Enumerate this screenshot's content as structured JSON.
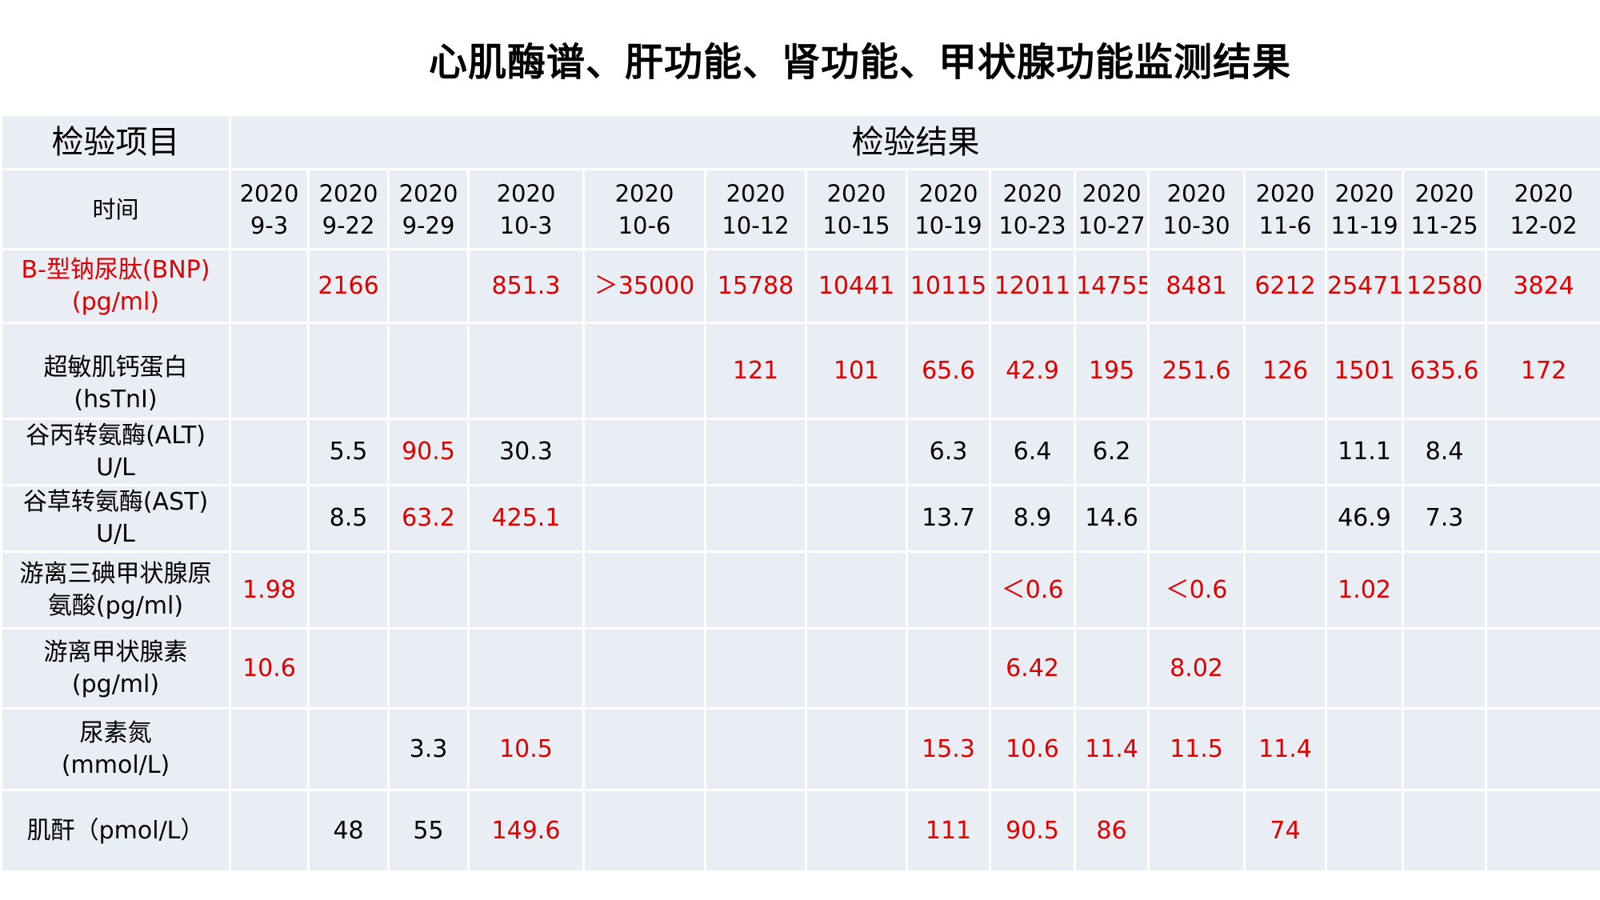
{
  "title": "心肌酶谱、肝功能、肾功能、甲状腺功能监测结果",
  "header": {
    "item_label": "检验项目",
    "result_label": "检验结果",
    "time_label": "时间"
  },
  "dates": [
    {
      "year": "2020",
      "md": "9-3"
    },
    {
      "year": "2020",
      "md": "9-22"
    },
    {
      "year": "2020",
      "md": "9-29"
    },
    {
      "year": "2020",
      "md": "10-3"
    },
    {
      "year": "2020",
      "md": "10-6"
    },
    {
      "year": "2020",
      "md": "10-12"
    },
    {
      "year": "2020",
      "md": "10-15"
    },
    {
      "year": "2020",
      "md": "10-19"
    },
    {
      "year": "2020",
      "md": "10-23"
    },
    {
      "year": "2020",
      "md": "10-27"
    },
    {
      "year": "2020",
      "md": "10-30"
    },
    {
      "year": "2020",
      "md": "11-6"
    },
    {
      "year": "2020",
      "md": "11-19"
    },
    {
      "year": "2020",
      "md": "11-25"
    },
    {
      "year": "2020",
      "md": "12-02"
    }
  ],
  "rows": [
    {
      "label1": "B-型钠尿肽(BNP)",
      "label2": "(pg/ml)",
      "label_color": "#e00000",
      "cells": [
        {
          "v": "",
          "red": false
        },
        {
          "v": "2166",
          "red": true
        },
        {
          "v": "",
          "red": false
        },
        {
          "v": "851.3",
          "red": true
        },
        {
          "v": "＞35000",
          "red": true
        },
        {
          "v": "15788",
          "red": true
        },
        {
          "v": "10441",
          "red": true
        },
        {
          "v": "10115",
          "red": true
        },
        {
          "v": "12011",
          "red": true
        },
        {
          "v": "14755",
          "red": true
        },
        {
          "v": "8481",
          "red": true
        },
        {
          "v": "6212",
          "red": true
        },
        {
          "v": "25471",
          "red": true
        },
        {
          "v": "12580",
          "red": true
        },
        {
          "v": "3824",
          "red": true
        }
      ]
    },
    {
      "label1": "超敏肌钙蛋白",
      "label2": "(hsTnI)",
      "label_color": "#000000",
      "cells": [
        {
          "v": "",
          "red": false
        },
        {
          "v": "",
          "red": false
        },
        {
          "v": "",
          "red": false
        },
        {
          "v": "",
          "red": false
        },
        {
          "v": "",
          "red": false
        },
        {
          "v": "121",
          "red": true
        },
        {
          "v": "101",
          "red": true
        },
        {
          "v": "65.6",
          "red": true
        },
        {
          "v": "42.9",
          "red": true
        },
        {
          "v": "195",
          "red": true
        },
        {
          "v": "251.6",
          "red": true
        },
        {
          "v": "126",
          "red": true
        },
        {
          "v": "1501",
          "red": true
        },
        {
          "v": "635.6",
          "red": true
        },
        {
          "v": "172",
          "red": true
        }
      ]
    },
    {
      "label1": "谷丙转氨酶(ALT)",
      "label2": "U/L",
      "label_color": "#000000",
      "cells": [
        {
          "v": "",
          "red": false
        },
        {
          "v": "5.5",
          "red": false
        },
        {
          "v": "90.5",
          "red": true
        },
        {
          "v": "30.3",
          "red": false
        },
        {
          "v": "",
          "red": false
        },
        {
          "v": "",
          "red": false
        },
        {
          "v": "",
          "red": false
        },
        {
          "v": "6.3",
          "red": false
        },
        {
          "v": "6.4",
          "red": false
        },
        {
          "v": "6.2",
          "red": false
        },
        {
          "v": "",
          "red": false
        },
        {
          "v": "",
          "red": false
        },
        {
          "v": "11.1",
          "red": false
        },
        {
          "v": "8.4",
          "red": false
        },
        {
          "v": "",
          "red": false
        }
      ]
    },
    {
      "label1": "谷草转氨酶(AST)",
      "label2": "U/L",
      "label_color": "#000000",
      "cells": [
        {
          "v": "",
          "red": false
        },
        {
          "v": "8.5",
          "red": false
        },
        {
          "v": "63.2",
          "red": true
        },
        {
          "v": "425.1",
          "red": true
        },
        {
          "v": "",
          "red": false
        },
        {
          "v": "",
          "red": false
        },
        {
          "v": "",
          "red": false
        },
        {
          "v": "13.7",
          "red": false
        },
        {
          "v": "8.9",
          "red": false
        },
        {
          "v": "14.6",
          "red": false
        },
        {
          "v": "",
          "red": false
        },
        {
          "v": "",
          "red": false
        },
        {
          "v": "46.9",
          "red": false
        },
        {
          "v": "7.3",
          "red": false
        },
        {
          "v": "",
          "red": false
        }
      ]
    },
    {
      "label1": "游离三碘甲状腺原",
      "label2": "氨酸(pg/ml)",
      "label_color": "#000000",
      "cells": [
        {
          "v": "1.98",
          "red": true
        },
        {
          "v": "",
          "red": false
        },
        {
          "v": "",
          "red": false
        },
        {
          "v": "",
          "red": false
        },
        {
          "v": "",
          "red": false
        },
        {
          "v": "",
          "red": false
        },
        {
          "v": "",
          "red": false
        },
        {
          "v": "",
          "red": false
        },
        {
          "v": "＜0.6",
          "red": true
        },
        {
          "v": "",
          "red": false
        },
        {
          "v": "＜0.6",
          "red": true
        },
        {
          "v": "",
          "red": false
        },
        {
          "v": "1.02",
          "red": true
        },
        {
          "v": "",
          "red": false
        },
        {
          "v": "",
          "red": false
        }
      ]
    },
    {
      "label1": "游离甲状腺素",
      "label2": "(pg/ml)",
      "label_color": "#000000",
      "cells": [
        {
          "v": "10.6",
          "red": true
        },
        {
          "v": "",
          "red": false
        },
        {
          "v": "",
          "red": false
        },
        {
          "v": "",
          "red": false
        },
        {
          "v": "",
          "red": false
        },
        {
          "v": "",
          "red": false
        },
        {
          "v": "",
          "red": false
        },
        {
          "v": "",
          "red": false
        },
        {
          "v": "6.42",
          "red": true
        },
        {
          "v": "",
          "red": false
        },
        {
          "v": "8.02",
          "red": true
        },
        {
          "v": "",
          "red": false
        },
        {
          "v": "",
          "red": false
        },
        {
          "v": "",
          "red": false
        },
        {
          "v": "",
          "red": false
        }
      ]
    },
    {
      "label1": "尿素氮",
      "label2": "(mmol/L)",
      "label_color": "#000000",
      "cells": [
        {
          "v": "",
          "red": false
        },
        {
          "v": "",
          "red": false
        },
        {
          "v": "3.3",
          "red": false
        },
        {
          "v": "10.5",
          "red": true
        },
        {
          "v": "",
          "red": false
        },
        {
          "v": "",
          "red": false
        },
        {
          "v": "",
          "red": false
        },
        {
          "v": "15.3",
          "red": true
        },
        {
          "v": "10.6",
          "red": true
        },
        {
          "v": "11.4",
          "red": true
        },
        {
          "v": "11.5",
          "red": true
        },
        {
          "v": "11.4",
          "red": true
        },
        {
          "v": "",
          "red": false
        },
        {
          "v": "",
          "red": false
        },
        {
          "v": "",
          "red": false
        }
      ]
    },
    {
      "label1": "肌酐（pmol/L）",
      "label2": "",
      "label_color": "#000000",
      "cells": [
        {
          "v": "",
          "red": false
        },
        {
          "v": "48",
          "red": false
        },
        {
          "v": "55",
          "red": false
        },
        {
          "v": "149.6",
          "red": true
        },
        {
          "v": "",
          "red": false
        },
        {
          "v": "",
          "red": false
        },
        {
          "v": "",
          "red": false
        },
        {
          "v": "111",
          "red": true
        },
        {
          "v": "90.5",
          "red": true
        },
        {
          "v": "86",
          "red": true
        },
        {
          "v": "",
          "red": false
        },
        {
          "v": "74",
          "red": true
        },
        {
          "v": "",
          "red": false
        },
        {
          "v": "",
          "red": false
        },
        {
          "v": "",
          "red": false
        }
      ]
    }
  ],
  "colors": {
    "abnormal": "#e00000",
    "normal": "#000000",
    "cell_bg": "#e9edf4",
    "grid": "#ffffff"
  }
}
